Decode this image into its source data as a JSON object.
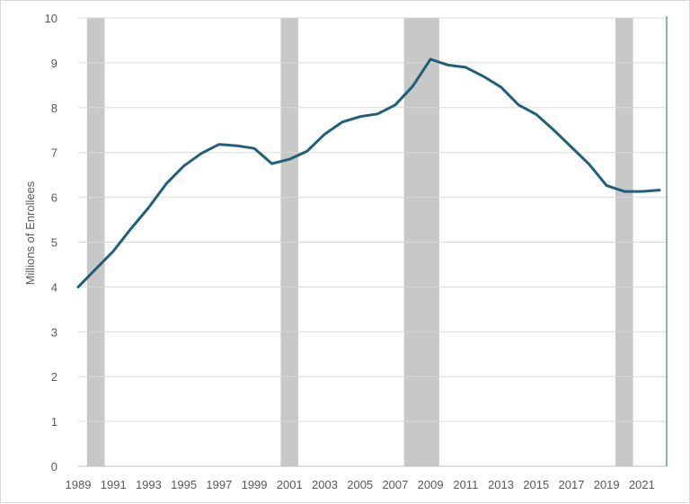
{
  "chart_data": {
    "type": "line",
    "title": "",
    "xlabel": "",
    "ylabel": "Millions of Enrollees",
    "ylim": [
      0,
      10
    ],
    "y_ticks": [
      0,
      1,
      2,
      3,
      4,
      5,
      6,
      7,
      8,
      9,
      10
    ],
    "x_ticks": [
      1989,
      1991,
      1993,
      1995,
      1997,
      1999,
      2001,
      2003,
      2005,
      2007,
      2009,
      2011,
      2013,
      2015,
      2017,
      2019,
      2021
    ],
    "xlim": [
      1989,
      2022
    ],
    "grid": true,
    "legend": "none",
    "line_color": "#1f5f7a",
    "band_color": "#c8c8c8",
    "recession_bands": [
      {
        "start": 1989.5,
        "end": 1990.5
      },
      {
        "start": 2000.5,
        "end": 2001.5
      },
      {
        "start": 2007.5,
        "end": 2009.5
      },
      {
        "start": 2019.5,
        "end": 2020.5
      }
    ],
    "x": [
      1989,
      1990,
      1991,
      1992,
      1993,
      1994,
      1995,
      1996,
      1997,
      1998,
      1999,
      2000,
      2001,
      2002,
      2003,
      2004,
      2005,
      2006,
      2007,
      2008,
      2009,
      2010,
      2011,
      2012,
      2013,
      2014,
      2015,
      2016,
      2017,
      2018,
      2019,
      2020,
      2021,
      2022
    ],
    "values": [
      4.0,
      4.4,
      4.8,
      5.3,
      5.77,
      6.3,
      6.7,
      6.98,
      7.18,
      7.15,
      7.09,
      6.75,
      6.85,
      7.03,
      7.41,
      7.68,
      7.8,
      7.86,
      8.06,
      8.48,
      9.08,
      8.95,
      8.9,
      8.7,
      8.46,
      8.06,
      7.85,
      7.5,
      7.12,
      6.74,
      6.26,
      6.13,
      6.13,
      6.16
    ]
  }
}
